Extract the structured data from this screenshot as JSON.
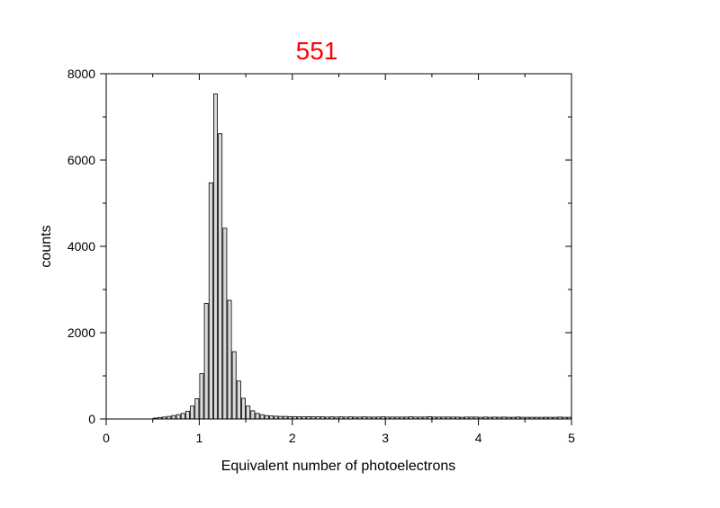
{
  "chart_data": {
    "type": "bar",
    "title": "551",
    "title_color": "#ff0000",
    "xlabel": "Equivalent number of photoelectrons",
    "ylabel": "counts",
    "xlim": [
      0,
      5
    ],
    "ylim": [
      0,
      8000
    ],
    "xticks": [
      "0",
      "1",
      "2",
      "3",
      "4",
      "5"
    ],
    "yticks": [
      "0",
      "2000",
      "4000",
      "6000",
      "8000"
    ],
    "bin_width": 0.05,
    "bar_color": "#d9d9d9",
    "edge_color": "#000000",
    "grid": false,
    "bins": [
      {
        "x": 0.525,
        "y": 20
      },
      {
        "x": 0.575,
        "y": 35
      },
      {
        "x": 0.625,
        "y": 45
      },
      {
        "x": 0.675,
        "y": 60
      },
      {
        "x": 0.725,
        "y": 80
      },
      {
        "x": 0.775,
        "y": 100
      },
      {
        "x": 0.825,
        "y": 130
      },
      {
        "x": 0.875,
        "y": 180
      },
      {
        "x": 0.925,
        "y": 300
      },
      {
        "x": 0.975,
        "y": 470
      },
      {
        "x": 1.025,
        "y": 1050
      },
      {
        "x": 1.075,
        "y": 2680
      },
      {
        "x": 1.125,
        "y": 5470
      },
      {
        "x": 1.175,
        "y": 7530
      },
      {
        "x": 1.225,
        "y": 6610
      },
      {
        "x": 1.275,
        "y": 4420
      },
      {
        "x": 1.325,
        "y": 2750
      },
      {
        "x": 1.375,
        "y": 1560
      },
      {
        "x": 1.425,
        "y": 880
      },
      {
        "x": 1.475,
        "y": 480
      },
      {
        "x": 1.525,
        "y": 300
      },
      {
        "x": 1.575,
        "y": 190
      },
      {
        "x": 1.625,
        "y": 130
      },
      {
        "x": 1.675,
        "y": 100
      },
      {
        "x": 1.725,
        "y": 80
      },
      {
        "x": 1.775,
        "y": 70
      },
      {
        "x": 1.825,
        "y": 65
      },
      {
        "x": 1.875,
        "y": 60
      },
      {
        "x": 1.925,
        "y": 60
      },
      {
        "x": 1.975,
        "y": 55
      },
      {
        "x": 2.025,
        "y": 55
      },
      {
        "x": 2.075,
        "y": 50
      },
      {
        "x": 2.125,
        "y": 50
      },
      {
        "x": 2.175,
        "y": 55
      },
      {
        "x": 2.225,
        "y": 50
      },
      {
        "x": 2.275,
        "y": 50
      },
      {
        "x": 2.325,
        "y": 50
      },
      {
        "x": 2.375,
        "y": 45
      },
      {
        "x": 2.425,
        "y": 50
      },
      {
        "x": 2.475,
        "y": 45
      },
      {
        "x": 2.525,
        "y": 50
      },
      {
        "x": 2.575,
        "y": 45
      },
      {
        "x": 2.625,
        "y": 50
      },
      {
        "x": 2.675,
        "y": 45
      },
      {
        "x": 2.725,
        "y": 45
      },
      {
        "x": 2.775,
        "y": 50
      },
      {
        "x": 2.825,
        "y": 45
      },
      {
        "x": 2.875,
        "y": 45
      },
      {
        "x": 2.925,
        "y": 45
      },
      {
        "x": 2.975,
        "y": 50
      },
      {
        "x": 3.025,
        "y": 45
      },
      {
        "x": 3.075,
        "y": 45
      },
      {
        "x": 3.125,
        "y": 45
      },
      {
        "x": 3.175,
        "y": 45
      },
      {
        "x": 3.225,
        "y": 45
      },
      {
        "x": 3.275,
        "y": 50
      },
      {
        "x": 3.325,
        "y": 45
      },
      {
        "x": 3.375,
        "y": 45
      },
      {
        "x": 3.425,
        "y": 45
      },
      {
        "x": 3.475,
        "y": 55
      },
      {
        "x": 3.525,
        "y": 45
      },
      {
        "x": 3.575,
        "y": 45
      },
      {
        "x": 3.625,
        "y": 45
      },
      {
        "x": 3.675,
        "y": 45
      },
      {
        "x": 3.725,
        "y": 45
      },
      {
        "x": 3.775,
        "y": 45
      },
      {
        "x": 3.825,
        "y": 40
      },
      {
        "x": 3.875,
        "y": 45
      },
      {
        "x": 3.925,
        "y": 45
      },
      {
        "x": 3.975,
        "y": 45
      },
      {
        "x": 4.025,
        "y": 40
      },
      {
        "x": 4.075,
        "y": 45
      },
      {
        "x": 4.125,
        "y": 40
      },
      {
        "x": 4.175,
        "y": 45
      },
      {
        "x": 4.225,
        "y": 40
      },
      {
        "x": 4.275,
        "y": 45
      },
      {
        "x": 4.325,
        "y": 40
      },
      {
        "x": 4.375,
        "y": 40
      },
      {
        "x": 4.425,
        "y": 45
      },
      {
        "x": 4.475,
        "y": 40
      },
      {
        "x": 4.525,
        "y": 40
      },
      {
        "x": 4.575,
        "y": 40
      },
      {
        "x": 4.625,
        "y": 40
      },
      {
        "x": 4.675,
        "y": 40
      },
      {
        "x": 4.725,
        "y": 40
      },
      {
        "x": 4.775,
        "y": 40
      },
      {
        "x": 4.825,
        "y": 40
      },
      {
        "x": 4.875,
        "y": 45
      },
      {
        "x": 4.925,
        "y": 40
      },
      {
        "x": 4.975,
        "y": 40
      }
    ]
  }
}
